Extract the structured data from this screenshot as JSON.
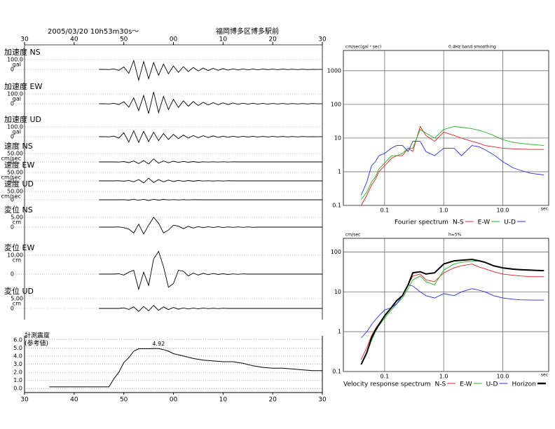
{
  "chart_data": [
    {
      "type": "waveform",
      "title": "2005/03/20 10h53m30s～",
      "location": "福岡博多区博多駅前",
      "xlim": [
        30,
        90
      ],
      "xticks": [
        30,
        40,
        50,
        {
          "value": 60,
          "label": "00"
        },
        {
          "value": 70,
          "label": "10"
        },
        {
          "value": 80,
          "label": "20"
        },
        {
          "value": 90,
          "label": "30"
        }
      ],
      "color": "#000000",
      "x": [
        45,
        46,
        47,
        48,
        49,
        50,
        51,
        52,
        53,
        54,
        55,
        56,
        57,
        58,
        59,
        60,
        61,
        62,
        63,
        64,
        65,
        66,
        67,
        68,
        69,
        70,
        71,
        72,
        73,
        74,
        75,
        76,
        77,
        78,
        79,
        80,
        81,
        82,
        83,
        84,
        85,
        86,
        87,
        88,
        89,
        90
      ],
      "series": [
        {
          "name": "加速度 NS",
          "scale": {
            "value": 100,
            "label": "100.0"
          },
          "unit": "gal",
          "zero": 0,
          "values": [
            0,
            1,
            -2,
            5,
            -10,
            25,
            -40,
            90,
            -110,
            80,
            -95,
            70,
            -60,
            55,
            -45,
            35,
            -30,
            28,
            -22,
            20,
            -16,
            14,
            -12,
            11,
            -9,
            8,
            -7,
            6,
            -6,
            5,
            -5,
            4,
            -4,
            4,
            -3,
            3,
            -3,
            3,
            -2,
            2,
            -2,
            2,
            -2,
            1,
            -1,
            1
          ]
        },
        {
          "name": "加速度 EW",
          "scale": {
            "value": 100,
            "label": "100.0"
          },
          "unit": "gal",
          "zero": 0,
          "values": [
            0,
            1,
            -2,
            4,
            -8,
            20,
            -35,
            60,
            -70,
            85,
            -100,
            120,
            -90,
            75,
            -60,
            45,
            -38,
            30,
            -26,
            22,
            -18,
            15,
            -13,
            11,
            -10,
            9,
            -8,
            7,
            -6,
            6,
            -5,
            5,
            -4,
            4,
            -4,
            3,
            -3,
            3,
            -3,
            2,
            -2,
            2,
            -2,
            2,
            -1,
            1
          ]
        },
        {
          "name": "加速度 UD",
          "scale": {
            "value": 100,
            "label": "100.0"
          },
          "unit": "gal",
          "zero": 0,
          "values": [
            0,
            1,
            -2,
            6,
            -15,
            40,
            -55,
            60,
            -58,
            55,
            -50,
            45,
            -40,
            32,
            -28,
            24,
            -20,
            17,
            -15,
            13,
            -11,
            10,
            -9,
            8,
            -7,
            6,
            -6,
            5,
            -5,
            4,
            -4,
            4,
            -3,
            3,
            -3,
            3,
            -2,
            2,
            -2,
            2,
            -2,
            2,
            -1,
            1,
            -1,
            1
          ]
        },
        {
          "name": "速度 NS",
          "scale": {
            "value": 50,
            "label": "50.00"
          },
          "unit": "cm/sec",
          "zero": 0,
          "values": [
            0,
            0,
            0,
            0,
            -1,
            2,
            -4,
            6,
            -10,
            8,
            -12,
            18,
            -8,
            6,
            -5,
            4,
            -3,
            3,
            -2,
            2,
            -2,
            1,
            -1,
            1,
            -1,
            1,
            -1,
            1,
            0,
            0,
            0,
            0,
            0,
            0,
            0,
            0,
            0,
            0,
            0,
            0,
            0,
            0,
            0,
            0,
            0,
            0
          ]
        },
        {
          "name": "速度 EW",
          "scale": {
            "value": 50,
            "label": "50.00"
          },
          "unit": "cm/sec",
          "zero": 0,
          "values": [
            0,
            0,
            0,
            0,
            1,
            -2,
            3,
            -6,
            8,
            -12,
            16,
            -10,
            8,
            -6,
            5,
            -4,
            3,
            -3,
            2,
            -2,
            2,
            -1,
            1,
            -1,
            1,
            -1,
            1,
            0,
            0,
            0,
            0,
            0,
            0,
            0,
            0,
            0,
            0,
            0,
            0,
            0,
            0,
            0,
            0,
            0,
            0,
            0
          ]
        },
        {
          "name": "速度 UD",
          "scale": {
            "value": 50,
            "label": "50.00"
          },
          "unit": "cm/sec",
          "zero": 0,
          "values": [
            0,
            0,
            0,
            0,
            0,
            1,
            -2,
            3,
            -3,
            3,
            -4,
            3,
            -2,
            2,
            -1,
            1,
            -1,
            1,
            -1,
            1,
            0,
            0,
            0,
            0,
            0,
            0,
            0,
            0,
            0,
            0,
            0,
            0,
            0,
            0,
            0,
            0,
            0,
            0,
            0,
            0,
            0,
            0,
            0,
            0,
            0,
            0
          ]
        },
        {
          "name": "変位 NS",
          "scale": {
            "value": 5,
            "label": "5.00"
          },
          "unit": "cm",
          "zero": 0,
          "values": [
            0,
            0,
            0,
            0,
            0.1,
            -0.3,
            -1,
            -3,
            1.5,
            -3.5,
            1,
            5,
            2,
            -3,
            -1.5,
            1,
            0.5,
            -0.8,
            0.4,
            -0.5,
            0.3,
            -0.3,
            0.2,
            -0.2,
            0.2,
            -0.2,
            0.1,
            -0.1,
            0.1,
            -0.1,
            0.1,
            -0.1,
            0,
            0,
            0,
            0,
            0,
            0,
            0,
            0,
            0,
            0,
            0,
            0,
            0,
            0
          ]
        },
        {
          "name": "変位 EW",
          "scale": {
            "value": 10,
            "label": "10.00"
          },
          "unit": "cm",
          "zero": 0,
          "values": [
            0,
            0,
            0,
            0,
            0.2,
            -0.5,
            1,
            2,
            -8,
            1,
            -6,
            8,
            12,
            4,
            -7,
            -5,
            2,
            1.5,
            -1,
            0.5,
            -0.5,
            0.4,
            -0.3,
            0.3,
            -0.2,
            0.2,
            -0.2,
            0.1,
            -0.1,
            0.1,
            0,
            0,
            0,
            0,
            0,
            0,
            0,
            0,
            0,
            0,
            0,
            0,
            0,
            0,
            0,
            0
          ]
        },
        {
          "name": "変位 UD",
          "scale": {
            "value": 5,
            "label": "5.00"
          },
          "unit": "cm",
          "zero": 0,
          "values": [
            0,
            0,
            0,
            0,
            0,
            0.3,
            -0.5,
            0.8,
            -1.5,
            1,
            -1.2,
            1.5,
            -1,
            0.8,
            -0.6,
            0.5,
            -0.4,
            0.3,
            -0.3,
            0.2,
            -0.2,
            0.2,
            -0.1,
            0.1,
            -0.1,
            0.1,
            0,
            0,
            0,
            0,
            0,
            0,
            0,
            0,
            0,
            0,
            0,
            0,
            0,
            0,
            0,
            0,
            0,
            0,
            0,
            0
          ]
        }
      ]
    },
    {
      "type": "line",
      "title": "計測震度",
      "subtitle": "(参考値)",
      "color": "#000000",
      "xlim": [
        30,
        90
      ],
      "xticks": [
        30,
        40,
        50,
        {
          "value": 60,
          "label": "00"
        },
        {
          "value": 70,
          "label": "10"
        },
        {
          "value": 80,
          "label": "20"
        },
        {
          "value": 90,
          "label": "30"
        }
      ],
      "ylim": [
        -0.5,
        6.5
      ],
      "yticks": [
        {
          "value": 0,
          "label": "0.0"
        },
        {
          "value": 1,
          "label": "1.0"
        },
        {
          "value": 2,
          "label": "2.0"
        },
        {
          "value": 3,
          "label": "3.0"
        },
        {
          "value": 4,
          "label": "4.0"
        },
        {
          "value": 5,
          "label": "5.0"
        },
        {
          "value": 6,
          "label": "6.0"
        }
      ],
      "grid": true,
      "x": [
        35,
        40,
        45,
        47,
        48,
        49,
        50,
        51,
        52,
        53,
        54,
        55,
        56,
        57,
        58,
        59,
        60,
        62,
        64,
        66,
        68,
        70,
        72,
        74,
        76,
        78,
        80,
        82,
        84,
        86,
        88,
        90
      ],
      "values": [
        0.2,
        0.2,
        0.2,
        0.2,
        1.2,
        2.0,
        3.2,
        3.8,
        4.6,
        4.9,
        4.9,
        4.9,
        4.92,
        4.92,
        4.8,
        4.6,
        4.3,
        4.0,
        3.7,
        3.5,
        3.4,
        3.3,
        3.3,
        3.1,
        2.8,
        2.6,
        2.5,
        2.5,
        2.4,
        2.3,
        2.2,
        2.2
      ],
      "annotations": [
        {
          "x": 57,
          "value": 4.92
        }
      ]
    },
    {
      "type": "loglog",
      "title": "Fourier spectrum",
      "y_label": "cm/sec(gal・sec)",
      "x_label": "sec",
      "note": "0.4Hz band smoothing",
      "log_scale": true,
      "grid": true,
      "xlim": [
        0.02,
        60
      ],
      "ylim": [
        0.1,
        4000
      ],
      "xticks": [
        0.1,
        {
          "value": 1,
          "label": "1.0"
        },
        {
          "value": 10,
          "label": "10.0"
        }
      ],
      "yticks": [
        0.1,
        1,
        10,
        100,
        1000
      ],
      "x": [
        0.04,
        0.05,
        0.06,
        0.07,
        0.08,
        0.1,
        0.13,
        0.16,
        0.2,
        0.25,
        0.3,
        0.4,
        0.5,
        0.7,
        1.0,
        1.5,
        2,
        3,
        4,
        5,
        7,
        10,
        15,
        20,
        30,
        50
      ],
      "series": [
        {
          "name": "N-S",
          "color": "#e02020",
          "values": [
            0.1,
            0.2,
            0.4,
            0.6,
            1,
            1.5,
            2.5,
            3,
            3,
            5,
            4,
            22,
            12,
            8,
            15,
            12,
            10,
            8,
            7,
            6,
            5.5,
            5,
            4.8,
            4.7,
            4.6,
            4.6
          ]
        },
        {
          "name": "E-W",
          "color": "#20b020",
          "values": [
            0.15,
            0.25,
            0.5,
            0.7,
            1.2,
            1.8,
            3,
            3,
            3.5,
            5,
            5,
            18,
            14,
            10,
            18,
            22,
            21,
            19,
            17,
            15,
            12,
            9,
            7.5,
            7,
            6.5,
            6
          ]
        },
        {
          "name": "U-D",
          "color": "#2030e0",
          "values": [
            0.2,
            0.5,
            1.5,
            2,
            3,
            3.5,
            5,
            6,
            6,
            4,
            8,
            8,
            4,
            3,
            5,
            5,
            3,
            6,
            5.5,
            4.5,
            3.2,
            2,
            1.3,
            1.1,
            0.9,
            0.8
          ]
        }
      ]
    },
    {
      "type": "loglog",
      "title": "Velocity response spectrum",
      "y_label": "cm/sec",
      "x_label": "sec",
      "note": "h=5%",
      "log_scale": true,
      "grid": true,
      "xlim": [
        0.02,
        60
      ],
      "ylim": [
        0.1,
        220
      ],
      "xticks": [
        0.1,
        {
          "value": 1,
          "label": "1.0"
        },
        {
          "value": 10,
          "label": "10.0"
        }
      ],
      "yticks": [
        0.1,
        1,
        10,
        100
      ],
      "x": [
        0.04,
        0.05,
        0.06,
        0.07,
        0.08,
        0.1,
        0.13,
        0.16,
        0.2,
        0.25,
        0.3,
        0.4,
        0.5,
        0.7,
        1.0,
        1.5,
        2,
        3,
        4,
        5,
        7,
        10,
        15,
        20,
        30,
        50
      ],
      "series": [
        {
          "name": "N-S",
          "color": "#e02020",
          "values": [
            0.2,
            0.4,
            0.8,
            1.2,
            1.6,
            2.5,
            4,
            6,
            8,
            15,
            25,
            28,
            20,
            18,
            30,
            40,
            45,
            50,
            42,
            38,
            32,
            28,
            26,
            25,
            24,
            24
          ]
        },
        {
          "name": "E-W",
          "color": "#20b020",
          "values": [
            0.15,
            0.3,
            0.6,
            1,
            1.4,
            2.2,
            3.5,
            5,
            7,
            12,
            20,
            25,
            18,
            15,
            35,
            50,
            55,
            58,
            60,
            55,
            45,
            40,
            38,
            36,
            35,
            35
          ]
        },
        {
          "name": "U-D",
          "color": "#2030e0",
          "values": [
            0.7,
            1,
            1.5,
            2,
            2.5,
            3.5,
            4,
            5,
            8,
            15,
            14,
            10,
            8,
            7,
            9,
            8,
            10,
            12,
            11,
            10,
            8,
            7,
            6.5,
            6.3,
            6.2,
            6.2
          ]
        },
        {
          "name": "Horizon",
          "color": "#000000",
          "values": [
            0.15,
            0.3,
            0.7,
            1.1,
            1.5,
            2.5,
            4,
            6,
            8,
            15,
            30,
            32,
            28,
            30,
            50,
            60,
            62,
            65,
            60,
            55,
            45,
            40,
            37,
            36,
            35,
            34
          ]
        }
      ]
    }
  ]
}
